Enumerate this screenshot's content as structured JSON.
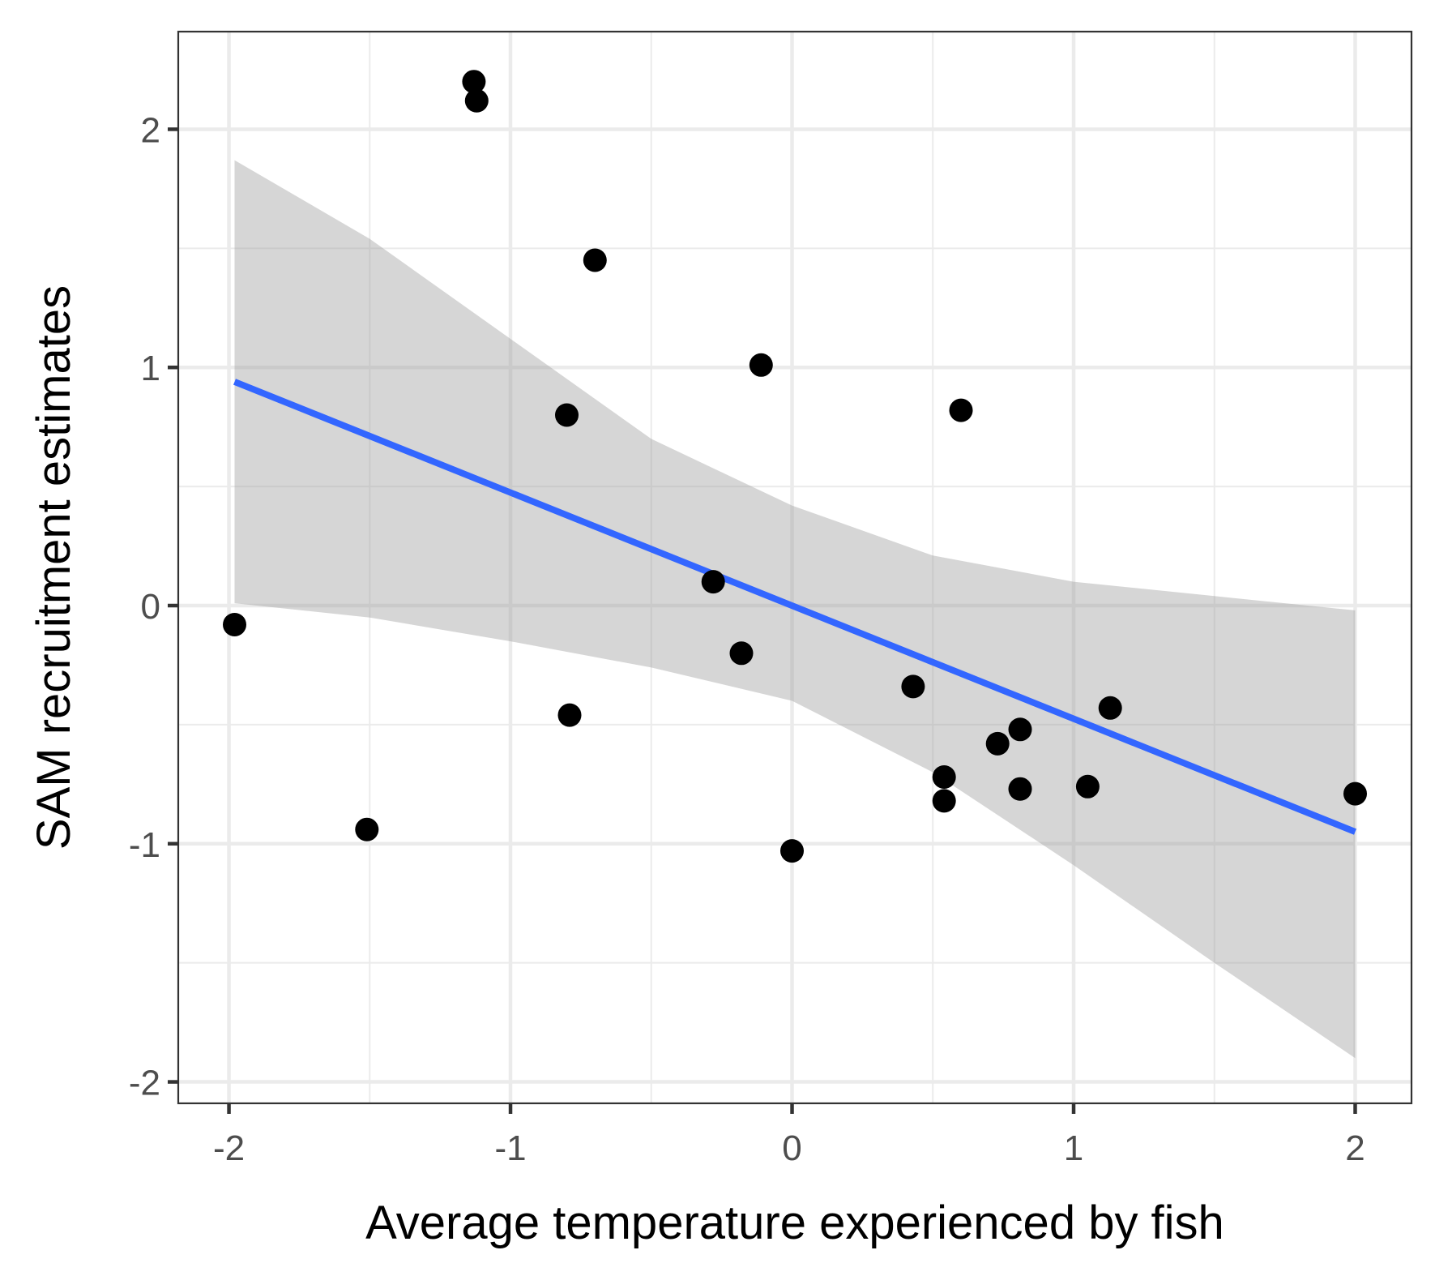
{
  "chart_data": {
    "type": "scatter",
    "title": "",
    "xlabel": "Average temperature experienced by fish",
    "ylabel": "SAM recruitment estimates",
    "xlim": [
      -2.18,
      2.2
    ],
    "ylim": [
      -2.09,
      2.41
    ],
    "x_ticks": [
      -2,
      -1,
      0,
      1,
      2
    ],
    "x_tick_labels": [
      "-2",
      "-1",
      "0",
      "1",
      "2"
    ],
    "y_ticks": [
      -2,
      -1,
      0,
      1,
      2
    ],
    "y_tick_labels": [
      "-2",
      "-1",
      "0",
      "1",
      "2"
    ],
    "grid": true,
    "series": [
      {
        "type": "scatter",
        "color": "#000000",
        "x": [
          -1.13,
          -1.12,
          -0.7,
          -0.11,
          0.6,
          -0.8,
          -0.28,
          -1.98,
          -0.18,
          -0.79,
          -1.51,
          0.0,
          0.43,
          0.54,
          0.54,
          0.73,
          0.81,
          0.81,
          1.05,
          1.13,
          2.0
        ],
        "y": [
          2.2,
          2.12,
          1.45,
          1.01,
          0.82,
          0.8,
          0.1,
          -0.08,
          -0.2,
          -0.46,
          -0.94,
          -1.03,
          -0.34,
          -0.72,
          -0.82,
          -0.58,
          -0.52,
          -0.77,
          -0.76,
          -0.43,
          -0.79
        ]
      },
      {
        "type": "line",
        "color": "#3366ff",
        "x": [
          -1.98,
          2.0
        ],
        "y": [
          0.94,
          -0.95
        ]
      },
      {
        "type": "band",
        "color": "#999999",
        "x": [
          -1.98,
          -1.5,
          -1.0,
          -0.5,
          0.0,
          0.5,
          1.0,
          1.5,
          2.0
        ],
        "lower": [
          0.01,
          -0.05,
          -0.15,
          -0.26,
          -0.4,
          -0.7,
          -1.09,
          -1.5,
          -1.9
        ],
        "upper": [
          1.87,
          1.54,
          1.12,
          0.7,
          0.42,
          0.21,
          0.1,
          0.04,
          -0.02
        ]
      }
    ]
  }
}
